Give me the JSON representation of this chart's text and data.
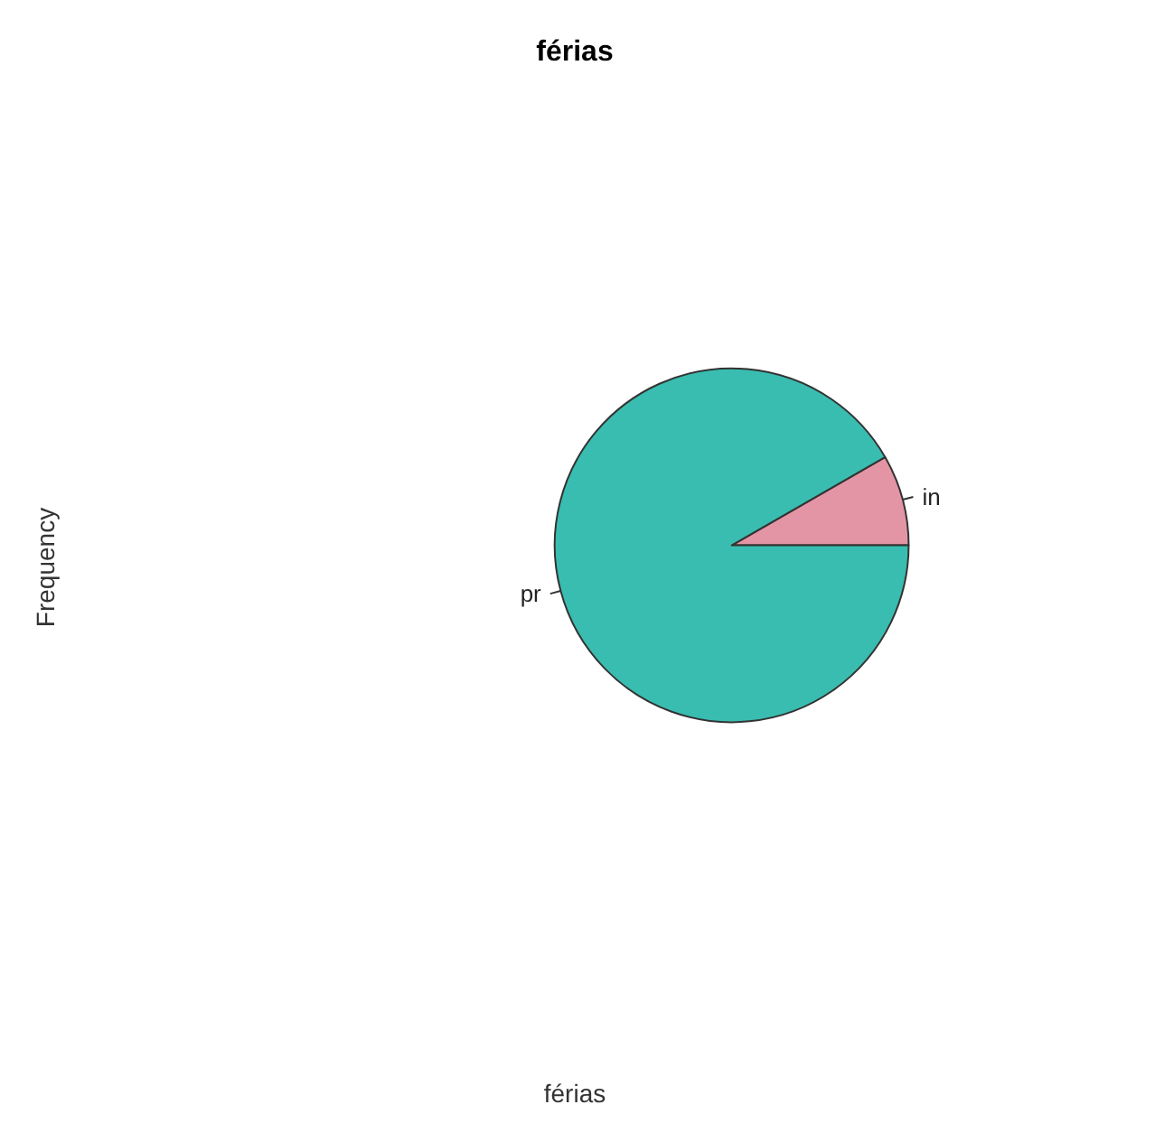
{
  "chart_data": {
    "type": "pie",
    "title": "férias",
    "xlabel": "férias",
    "ylabel": "Frequency",
    "categories": [
      "in",
      "pr"
    ],
    "values": [
      8.3,
      91.7
    ],
    "colors": [
      "#e495a5",
      "#39bdb0"
    ],
    "legend": false
  }
}
